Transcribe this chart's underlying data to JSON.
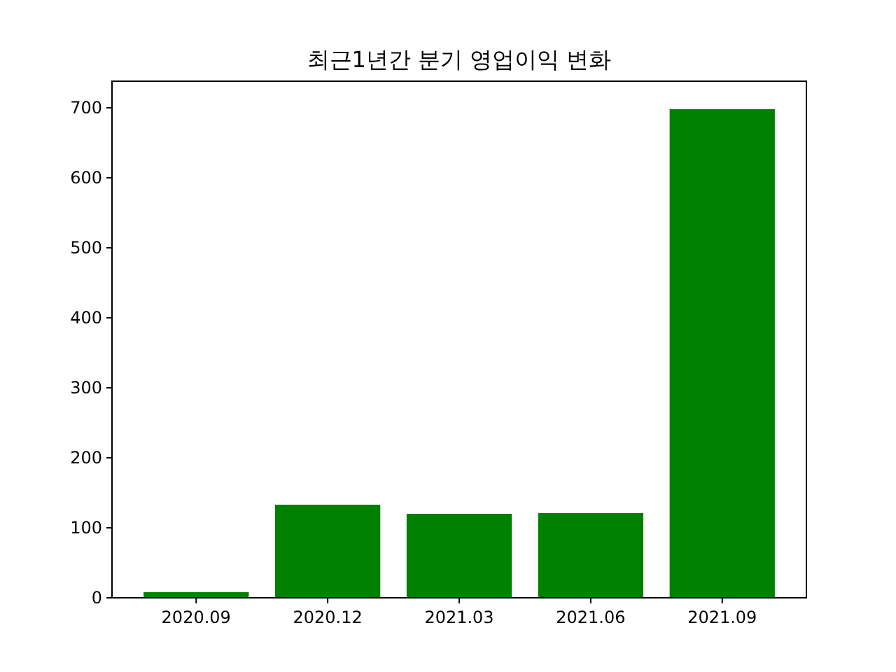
{
  "chart_data": {
    "type": "bar",
    "title": "최근1년간 분기 영업이익 변화",
    "categories": [
      "2020.09",
      "2020.12",
      "2021.03",
      "2021.06",
      "2021.09"
    ],
    "values": [
      8,
      133,
      120,
      121,
      698
    ],
    "color": "#008000",
    "ylim": [
      0,
      738
    ],
    "yticks": [
      0,
      100,
      200,
      300,
      400,
      500,
      600,
      700
    ]
  }
}
